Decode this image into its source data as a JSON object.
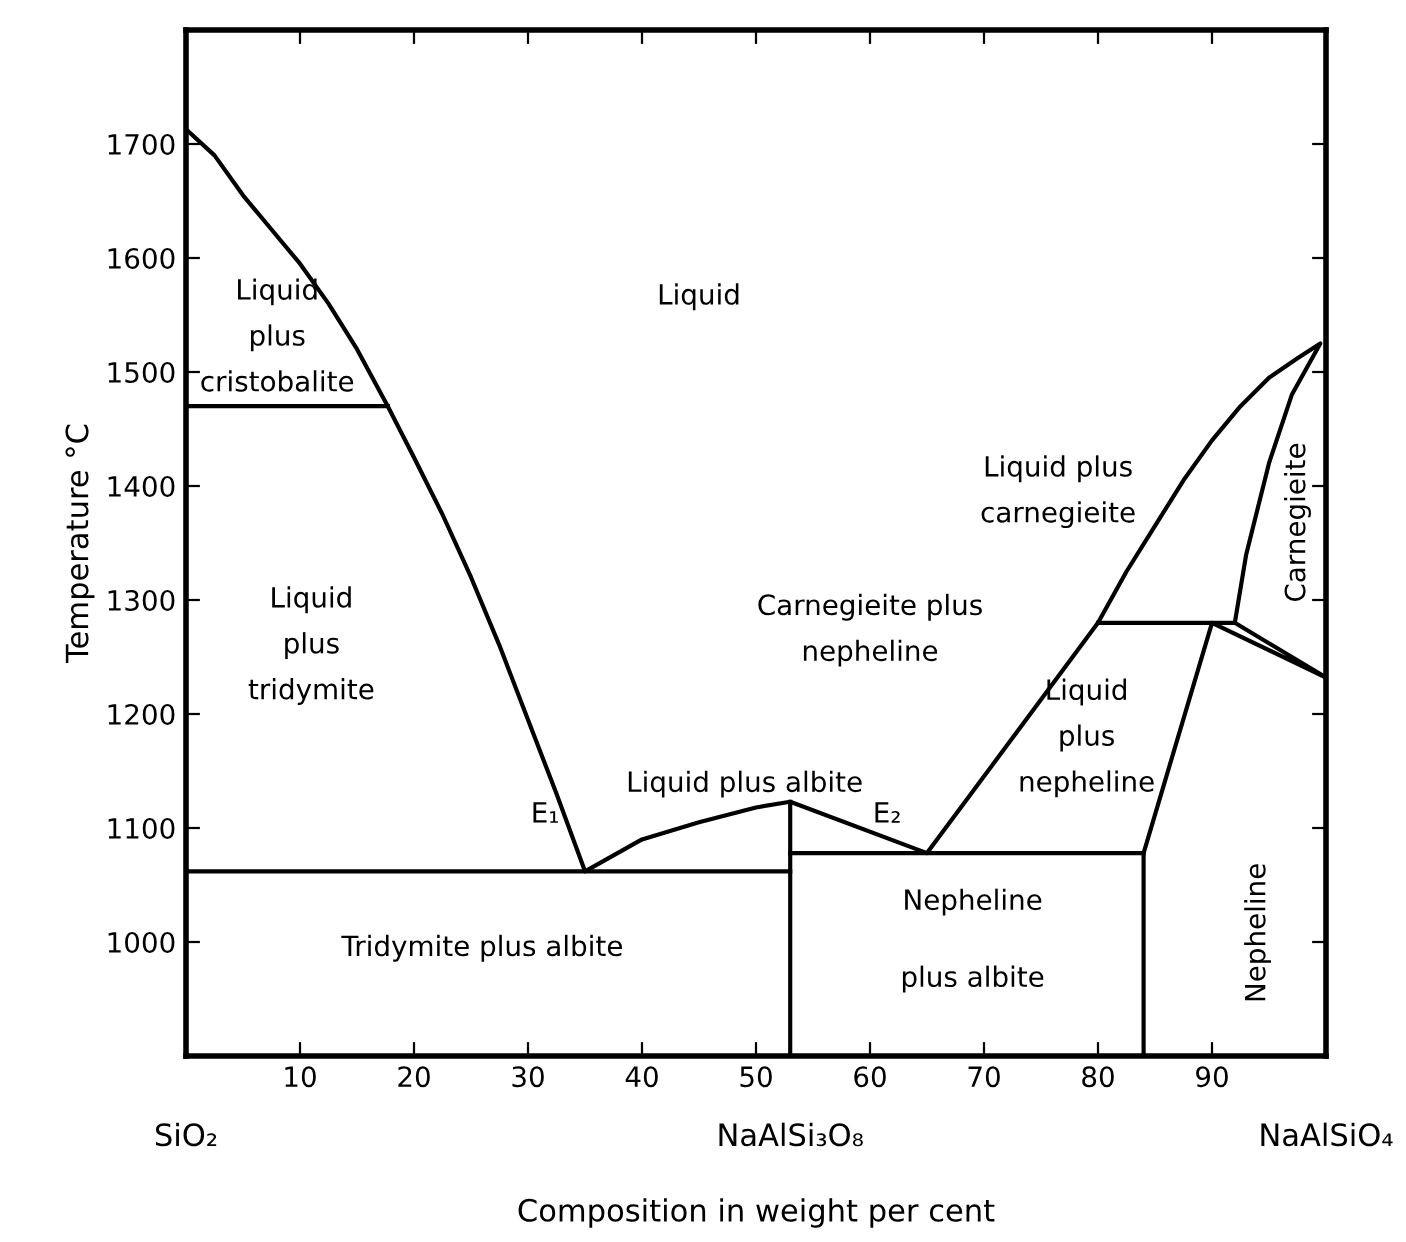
{
  "chart_data": {
    "type": "line",
    "xlabel": "Composition in weight per cent",
    "ylabel": "Temperature °C",
    "xlim": [
      0,
      100
    ],
    "ylim": [
      900,
      1800
    ],
    "xticks": [
      10,
      20,
      30,
      40,
      50,
      60,
      70,
      80,
      90
    ],
    "yticks": [
      1000,
      1100,
      1200,
      1300,
      1400,
      1500,
      1600,
      1700
    ],
    "grid": false,
    "legend": false,
    "marker": "none",
    "line_style": "solid",
    "series": [
      {
        "color": "#000000",
        "x": [
          0,
          2.5,
          5,
          7.5,
          10,
          12.5,
          15,
          17.7,
          20,
          22.5,
          25,
          27.5,
          30,
          32.5,
          35,
          40,
          45,
          50,
          53,
          65,
          80,
          82.5,
          85,
          87.5,
          90,
          92.5,
          95,
          97.5,
          99.5,
          97,
          95,
          93,
          92,
          100,
          90,
          84,
          84
        ],
        "values": [
          1713,
          1690,
          1655,
          1625,
          1595,
          1560,
          1520,
          1470,
          1425,
          1375,
          1320,
          1260,
          1195,
          1130,
          1062,
          1090,
          1105,
          1118,
          1123,
          1078,
          1280,
          1325,
          1365,
          1405,
          1440,
          1470,
          1495,
          1512,
          1525,
          1480,
          1420,
          1340,
          1280,
          1232,
          1280,
          1078,
          900
        ]
      },
      {
        "color": "#000000",
        "x": [
          0,
          17.7
        ],
        "values": [
          1470,
          1470
        ]
      },
      {
        "color": "#000000",
        "x": [
          0,
          53
        ],
        "values": [
          1062,
          1062
        ]
      },
      {
        "color": "#000000",
        "x": [
          53,
          53
        ],
        "values": [
          900,
          1123
        ]
      },
      {
        "color": "#000000",
        "x": [
          53,
          84
        ],
        "values": [
          1078,
          1078
        ]
      },
      {
        "color": "#000000",
        "x": [
          80,
          92
        ],
        "values": [
          1280,
          1280
        ]
      }
    ],
    "annotations": [
      "Liquid",
      "Liquid\nplus\ncristobalite",
      "Liquid\nplus\ntridymite",
      "E₁",
      "Liquid plus albite",
      "E₂",
      "Carnegieite plus\nnepheline",
      "Liquid\nplus\nnepheline",
      "Liquid plus\ncarnegieite",
      "Carnegieite",
      "Nepheline",
      "Tridymite plus albite",
      "Nepheline",
      "plus albite",
      "SiO₂",
      "NaAlSi₃O₈",
      "NaAlSiO₄"
    ]
  }
}
